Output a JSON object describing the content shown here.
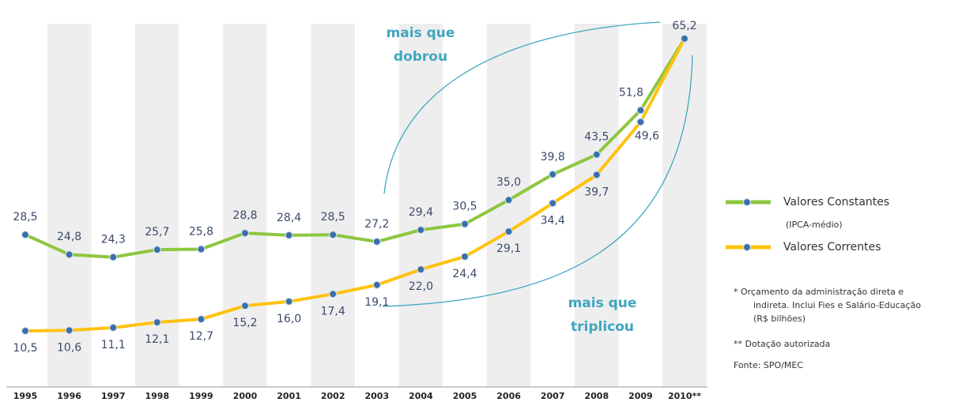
{
  "chart_data": {
    "type": "line",
    "categories": [
      "1995",
      "1996",
      "1997",
      "1998",
      "1999",
      "2000",
      "2001",
      "2002",
      "2003",
      "2004",
      "2005",
      "2006",
      "2007",
      "2008",
      "2009",
      "2010**"
    ],
    "series": [
      {
        "name": "Valores Constantes",
        "subname": "(IPCA-médio)",
        "color": "#8dc63f",
        "values": [
          28.5,
          24.8,
          24.3,
          25.7,
          25.8,
          28.8,
          28.4,
          28.5,
          27.2,
          29.4,
          30.5,
          35.0,
          39.8,
          43.5,
          51.8,
          65.2
        ],
        "value_labels": [
          "28,5",
          "24,8",
          "24,3",
          "25,7",
          "25,8",
          "28,8",
          "28,4",
          "28,5",
          "27,2",
          "29,4",
          "30,5",
          "35,0",
          "39,8",
          "43,5",
          "51,8",
          "65,2"
        ]
      },
      {
        "name": "Valores Correntes",
        "color": "#ffc20e",
        "values": [
          10.5,
          10.6,
          11.1,
          12.1,
          12.7,
          15.2,
          16.0,
          17.4,
          19.1,
          22.0,
          24.4,
          29.1,
          34.4,
          39.7,
          49.6,
          65.2
        ],
        "value_labels": [
          "10,5",
          "10,6",
          "11,1",
          "12,1",
          "12,7",
          "15,2",
          "16,0",
          "17,4",
          "19,1",
          "22,0",
          "24,4",
          "29,1",
          "34,4",
          "39,7",
          "49,6",
          ""
        ]
      }
    ],
    "ylim": [
      0,
      68
    ],
    "annotations": [
      {
        "lines": [
          "mais que",
          "dobrou"
        ]
      },
      {
        "lines": [
          "mais que",
          "triplicou"
        ]
      }
    ],
    "notes": [
      "*   Orçamento da administração direta e",
      "indireta. Inclui Fies e Salário-Educação",
      "(R$ bilhões)",
      "**  Dotação autorizada",
      "Fonte: SPO/MEC"
    ]
  }
}
